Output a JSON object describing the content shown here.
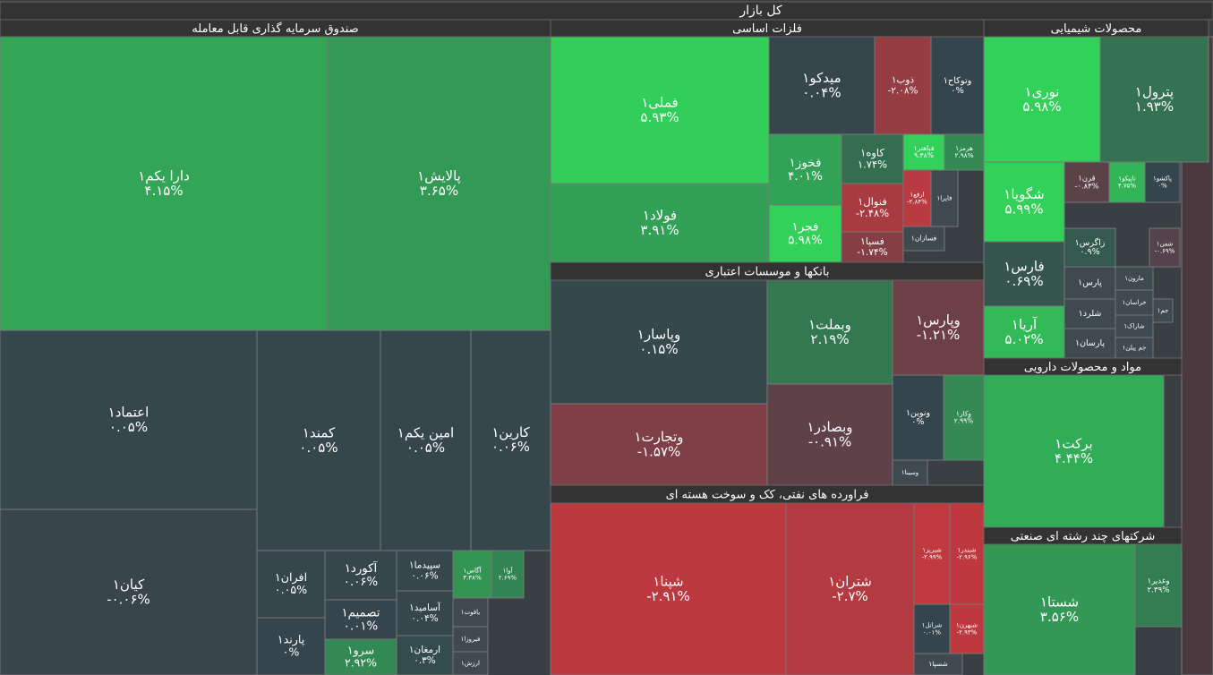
{
  "chart_data": {
    "type": "treemap",
    "title": "کل بازار",
    "series": [
      {
        "name": "صندوق سرمایه گذاری قابل معامله",
        "categories": [
          "دارا یکم۱",
          "پالایش۱",
          "اعتماد۱",
          "کیان۱",
          "کمند۱",
          "امین یکم۱",
          "کارین۱",
          "افران۱",
          "پارند۱",
          "آکورد۱",
          "تصمیم۱",
          "سرو۱",
          "سپیدما۱",
          "آسامید۱",
          "ارمغان۱",
          "آگاس۱",
          "آوا۱",
          "یاقوت۱",
          "فیروزا۱",
          "ارزش۱"
        ],
        "values": [
          4.15,
          3.65,
          0.05,
          -0.06,
          0.05,
          0.05,
          0.06,
          0.05,
          0,
          0.06,
          0.01,
          2.92,
          0.06,
          0.04,
          0.3,
          3.38,
          2.69,
          null,
          null,
          null
        ],
        "value_labels": [
          "۴.۱۵%",
          "۳.۶۵%",
          "۰.۰۵%",
          "-۰.۰۶%",
          "۰.۰۵%",
          "۰.۰۵%",
          "۰.۰۶%",
          "۰.۰۵%",
          "۰%",
          "۰.۰۶%",
          "۰.۰۱%",
          "۲.۹۲%",
          "۰.۰۶%",
          "۰.۰۴%",
          "۰.۳%",
          "۳.۳۸%",
          "۲.۶۹%",
          null,
          null,
          null
        ]
      },
      {
        "name": "فلزات اساسی",
        "categories": [
          "فملی۱",
          "فولاد۱",
          "میدکو۱",
          "ذوب۱",
          "وتوکاح۱",
          "فخوز۱",
          "فجر۱",
          "کاوه۱",
          "فباهنر۱",
          "هرمز۱",
          "فنوال۱",
          "ارفع۱",
          "فاپرا۱",
          "فسپا۱",
          "فسازان۱"
        ],
        "values": [
          5.93,
          3.91,
          0.04,
          -2.08,
          0,
          4.01,
          5.98,
          1.74,
          9.38,
          2.98,
          -2.48,
          -2.84,
          null,
          -1.74,
          null
        ],
        "value_labels": [
          "۵.۹۳%",
          "۳.۹۱%",
          "۰.۰۴%",
          "-۲.۰۸%",
          "۰%",
          "۴.۰۱%",
          "۵.۹۸%",
          "۱.۷۴%",
          "۹.۳۸%",
          "۲.۹۸%",
          "-۲.۴۸%",
          "-۲.۸۴%",
          null,
          "-۱.۷۴%",
          null
        ]
      },
      {
        "name": "بانکها و موسسات اعتباری",
        "categories": [
          "وپاسار۱",
          "وتجارت۱",
          "وبملت۱",
          "وبصادر۱",
          "وپارس۱",
          "ونوین۱",
          "وکار۱",
          "وسینا۱"
        ],
        "values": [
          0.15,
          -1.57,
          2.19,
          -0.91,
          -1.21,
          0,
          2.99,
          null
        ],
        "value_labels": [
          "۰.۱۵%",
          "-۱.۵۷%",
          "۲.۱۹%",
          "-۰.۹۱%",
          "-۱.۲۱%",
          "۰%",
          "۲.۹۹%",
          null
        ]
      },
      {
        "name": "فراورده های نفتی، کک و سوخت هسته ای",
        "categories": [
          "شپنا۱",
          "شتران۱",
          "شبریز۱",
          "شبندر۱",
          "شرانل۱",
          "شبهرن۱",
          "شسپا۱"
        ],
        "values": [
          -2.91,
          -2.7,
          -2.99,
          -2.96,
          0.01,
          -2.93,
          null
        ],
        "value_labels": [
          "-۲.۹۱%",
          "-۲.۷%",
          "-۲.۹۹%",
          "-۲.۹۶%",
          "۰.۰۱%",
          "-۲.۹۳%",
          null
        ]
      },
      {
        "name": "محصولات شیمیایی",
        "categories": [
          "نوری۱",
          "پترول۱",
          "شگویا۱",
          "فارس۱",
          "آریا۱",
          "قرن۱",
          "تاپیکو۱",
          "پاکشو۱",
          "زاگرس۱",
          "شفن۱",
          "پارس۱",
          "شلرد۱",
          "پارسان۱",
          "مارون۱",
          "خراسان۱",
          "شاراک۱",
          "جم پیلن۱",
          "جم۱"
        ],
        "values": [
          5.98,
          1.93,
          5.99,
          0.69,
          5.02,
          -0.83,
          4.75,
          0,
          0.9,
          -0.69,
          null,
          null,
          null,
          null,
          null,
          null,
          null,
          null
        ],
        "value_labels": [
          "۵.۹۸%",
          "۱.۹۳%",
          "۵.۹۹%",
          "۰.۶۹%",
          "۵.۰۲%",
          "-۰.۸۳%",
          "۴.۷۵%",
          "۰%",
          "۰.۹%",
          "-۰.۶۹%",
          null,
          null,
          null,
          null,
          null,
          null,
          null,
          null
        ]
      },
      {
        "name": "مواد و محصولات دارویی",
        "categories": [
          "برکت۱"
        ],
        "values": [
          4.44
        ],
        "value_labels": [
          "۴.۴۴%"
        ]
      },
      {
        "name": "شرکتهای چند رشته ای صنعتی",
        "categories": [
          "شستا۱",
          "وغدیر۱"
        ],
        "values": [
          3.56,
          2.39
        ],
        "value_labels": [
          "۳.۵۶%",
          "۲.۳۹%"
        ]
      }
    ]
  }
}
